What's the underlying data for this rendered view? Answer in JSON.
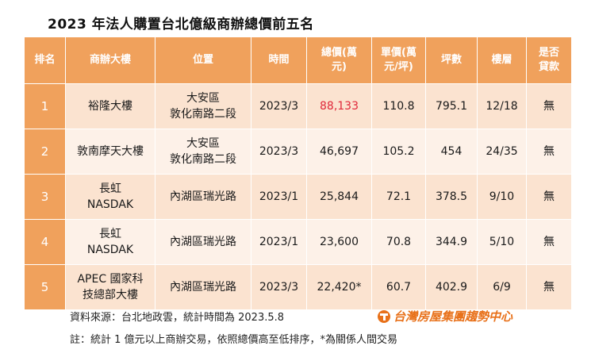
{
  "title": "2023 年法人購置台北億級商辦總價前五名",
  "table": {
    "headers": [
      "排名",
      "商辦大樓",
      "位置",
      "時間",
      "總價(萬元)",
      "單價(萬元/坪)",
      "坪數",
      "樓層",
      "是否貸款"
    ],
    "rows": [
      {
        "rank": "1",
        "building": "裕隆大樓",
        "location_1": "大安區",
        "location_2": "敦化南路二段",
        "time": "2023/3",
        "total": "88,133",
        "unit_price": "110.8",
        "area": "795.1",
        "floor": "12/18",
        "loan": "無"
      },
      {
        "rank": "2",
        "building": "敦南摩天大樓",
        "location_1": "大安區",
        "location_2": "敦化南路二段",
        "time": "2023/3",
        "total": "46,697",
        "unit_price": "105.2",
        "area": "454",
        "floor": "24/35",
        "loan": "無"
      },
      {
        "rank": "3",
        "building_1": "長虹",
        "building_2": "NASDAK",
        "location": "內湖區瑞光路",
        "time": "2023/1",
        "total": "25,844",
        "unit_price": "72.1",
        "area": "378.5",
        "floor": "9/10",
        "loan": "無"
      },
      {
        "rank": "4",
        "building_1": "長虹",
        "building_2": "NASDAK",
        "location": "內湖區瑞光路",
        "time": "2023/1",
        "total": "23,600",
        "unit_price": "70.8",
        "area": "344.9",
        "floor": "5/10",
        "loan": "無"
      },
      {
        "rank": "5",
        "building_1": "APEC 國家科",
        "building_2": "技總部大樓",
        "location": "內湖區瑞光路",
        "time": "2023/3",
        "total": "22,420*",
        "unit_price": "60.7",
        "area": "402.9",
        "floor": "6/9",
        "loan": "無"
      }
    ]
  },
  "source_note": "資料來源：台北地政雲，統計時間為 2023.5.8",
  "footnote": "註：統計 1 億元以上商辦交易，依照總價高至低排序，*為關係人間交易",
  "brand": "台灣房屋集團趨勢中心",
  "colors": {
    "header_bg": "#f0a15c",
    "row_odd": "#fbe3d0",
    "row_even": "#fdf1e8",
    "highlight": "#e0283a",
    "brand": "#e8711a"
  }
}
